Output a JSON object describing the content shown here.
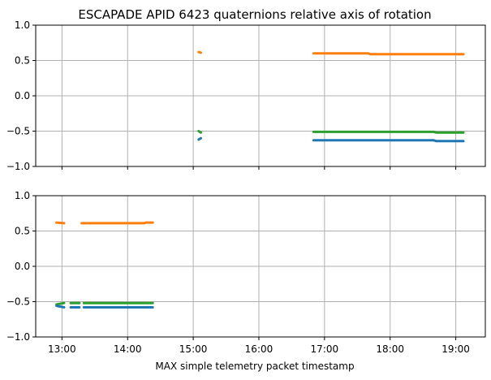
{
  "chart_data": [
    {
      "type": "scatter",
      "title": "ESCAPADE APID 6423 quaternions relative axis of rotation",
      "xlabel": "",
      "ylabel": "",
      "ylim": [
        -1.0,
        1.0
      ],
      "yticks": [
        "−1.0",
        "−0.5",
        "0.0",
        "0.5",
        "1.0"
      ],
      "ytick_values": [
        -1.0,
        -0.5,
        0.0,
        0.5,
        1.0
      ],
      "xlim": [
        "12:36",
        "19:27"
      ],
      "xticks": [
        "13:00",
        "14:00",
        "15:00",
        "16:00",
        "17:00",
        "18:00",
        "19:00"
      ],
      "xtick_labels_shown": false,
      "grid": true,
      "series": [
        {
          "color": "#ff7f0e",
          "segments": [
            {
              "x": [
                "15:05",
                "15:07"
              ],
              "y": [
                0.62,
                0.61
              ]
            },
            {
              "x": [
                "16:50",
                "17:40",
                "17:42",
                "19:07"
              ],
              "y": [
                0.6,
                0.6,
                0.59,
                0.59
              ]
            }
          ]
        },
        {
          "color": "#2ca02c",
          "segments": [
            {
              "x": [
                "15:05",
                "15:07"
              ],
              "y": [
                -0.5,
                -0.52
              ]
            },
            {
              "x": [
                "16:50",
                "18:40",
                "18:42",
                "19:07"
              ],
              "y": [
                -0.51,
                -0.51,
                -0.52,
                -0.52
              ]
            }
          ]
        },
        {
          "color": "#1f77b4",
          "segments": [
            {
              "x": [
                "15:05",
                "15:07"
              ],
              "y": [
                -0.62,
                -0.6
              ]
            },
            {
              "x": [
                "16:50",
                "18:40",
                "18:42",
                "19:07"
              ],
              "y": [
                -0.63,
                -0.63,
                -0.64,
                -0.64
              ]
            }
          ]
        }
      ]
    },
    {
      "type": "scatter",
      "title": "",
      "xlabel": "MAX simple telemetry packet timestamp",
      "ylabel": "",
      "ylim": [
        -1.0,
        1.0
      ],
      "yticks": [
        "−1.0",
        "−0.5",
        "0.0",
        "0.5",
        "1.0"
      ],
      "ytick_values": [
        -1.0,
        -0.5,
        0.0,
        0.5,
        1.0
      ],
      "xlim": [
        "12:36",
        "19:27"
      ],
      "xticks": [
        "13:00",
        "14:00",
        "15:00",
        "16:00",
        "17:00",
        "18:00",
        "19:00"
      ],
      "xtick_labels_shown": true,
      "grid": true,
      "series": [
        {
          "color": "#ff7f0e",
          "segments": [
            {
              "x": [
                "12:55",
                "13:02"
              ],
              "y": [
                0.62,
                0.61
              ]
            },
            {
              "x": [
                "13:18",
                "14:15",
                "14:17",
                "14:23"
              ],
              "y": [
                0.61,
                0.61,
                0.62,
                0.62
              ]
            }
          ]
        },
        {
          "color": "#2ca02c",
          "segments": [
            {
              "x": [
                "12:55",
                "13:02"
              ],
              "y": [
                -0.54,
                -0.52
              ]
            },
            {
              "x": [
                "13:08",
                "13:16"
              ],
              "y": [
                -0.52,
                -0.52
              ]
            },
            {
              "x": [
                "13:20",
                "14:23"
              ],
              "y": [
                -0.52,
                -0.52
              ]
            }
          ]
        },
        {
          "color": "#1f77b4",
          "segments": [
            {
              "x": [
                "12:55",
                "13:02"
              ],
              "y": [
                -0.56,
                -0.58
              ]
            },
            {
              "x": [
                "13:08",
                "13:16"
              ],
              "y": [
                -0.58,
                -0.58
              ]
            },
            {
              "x": [
                "13:20",
                "14:23"
              ],
              "y": [
                -0.58,
                -0.58
              ]
            }
          ]
        }
      ]
    }
  ]
}
